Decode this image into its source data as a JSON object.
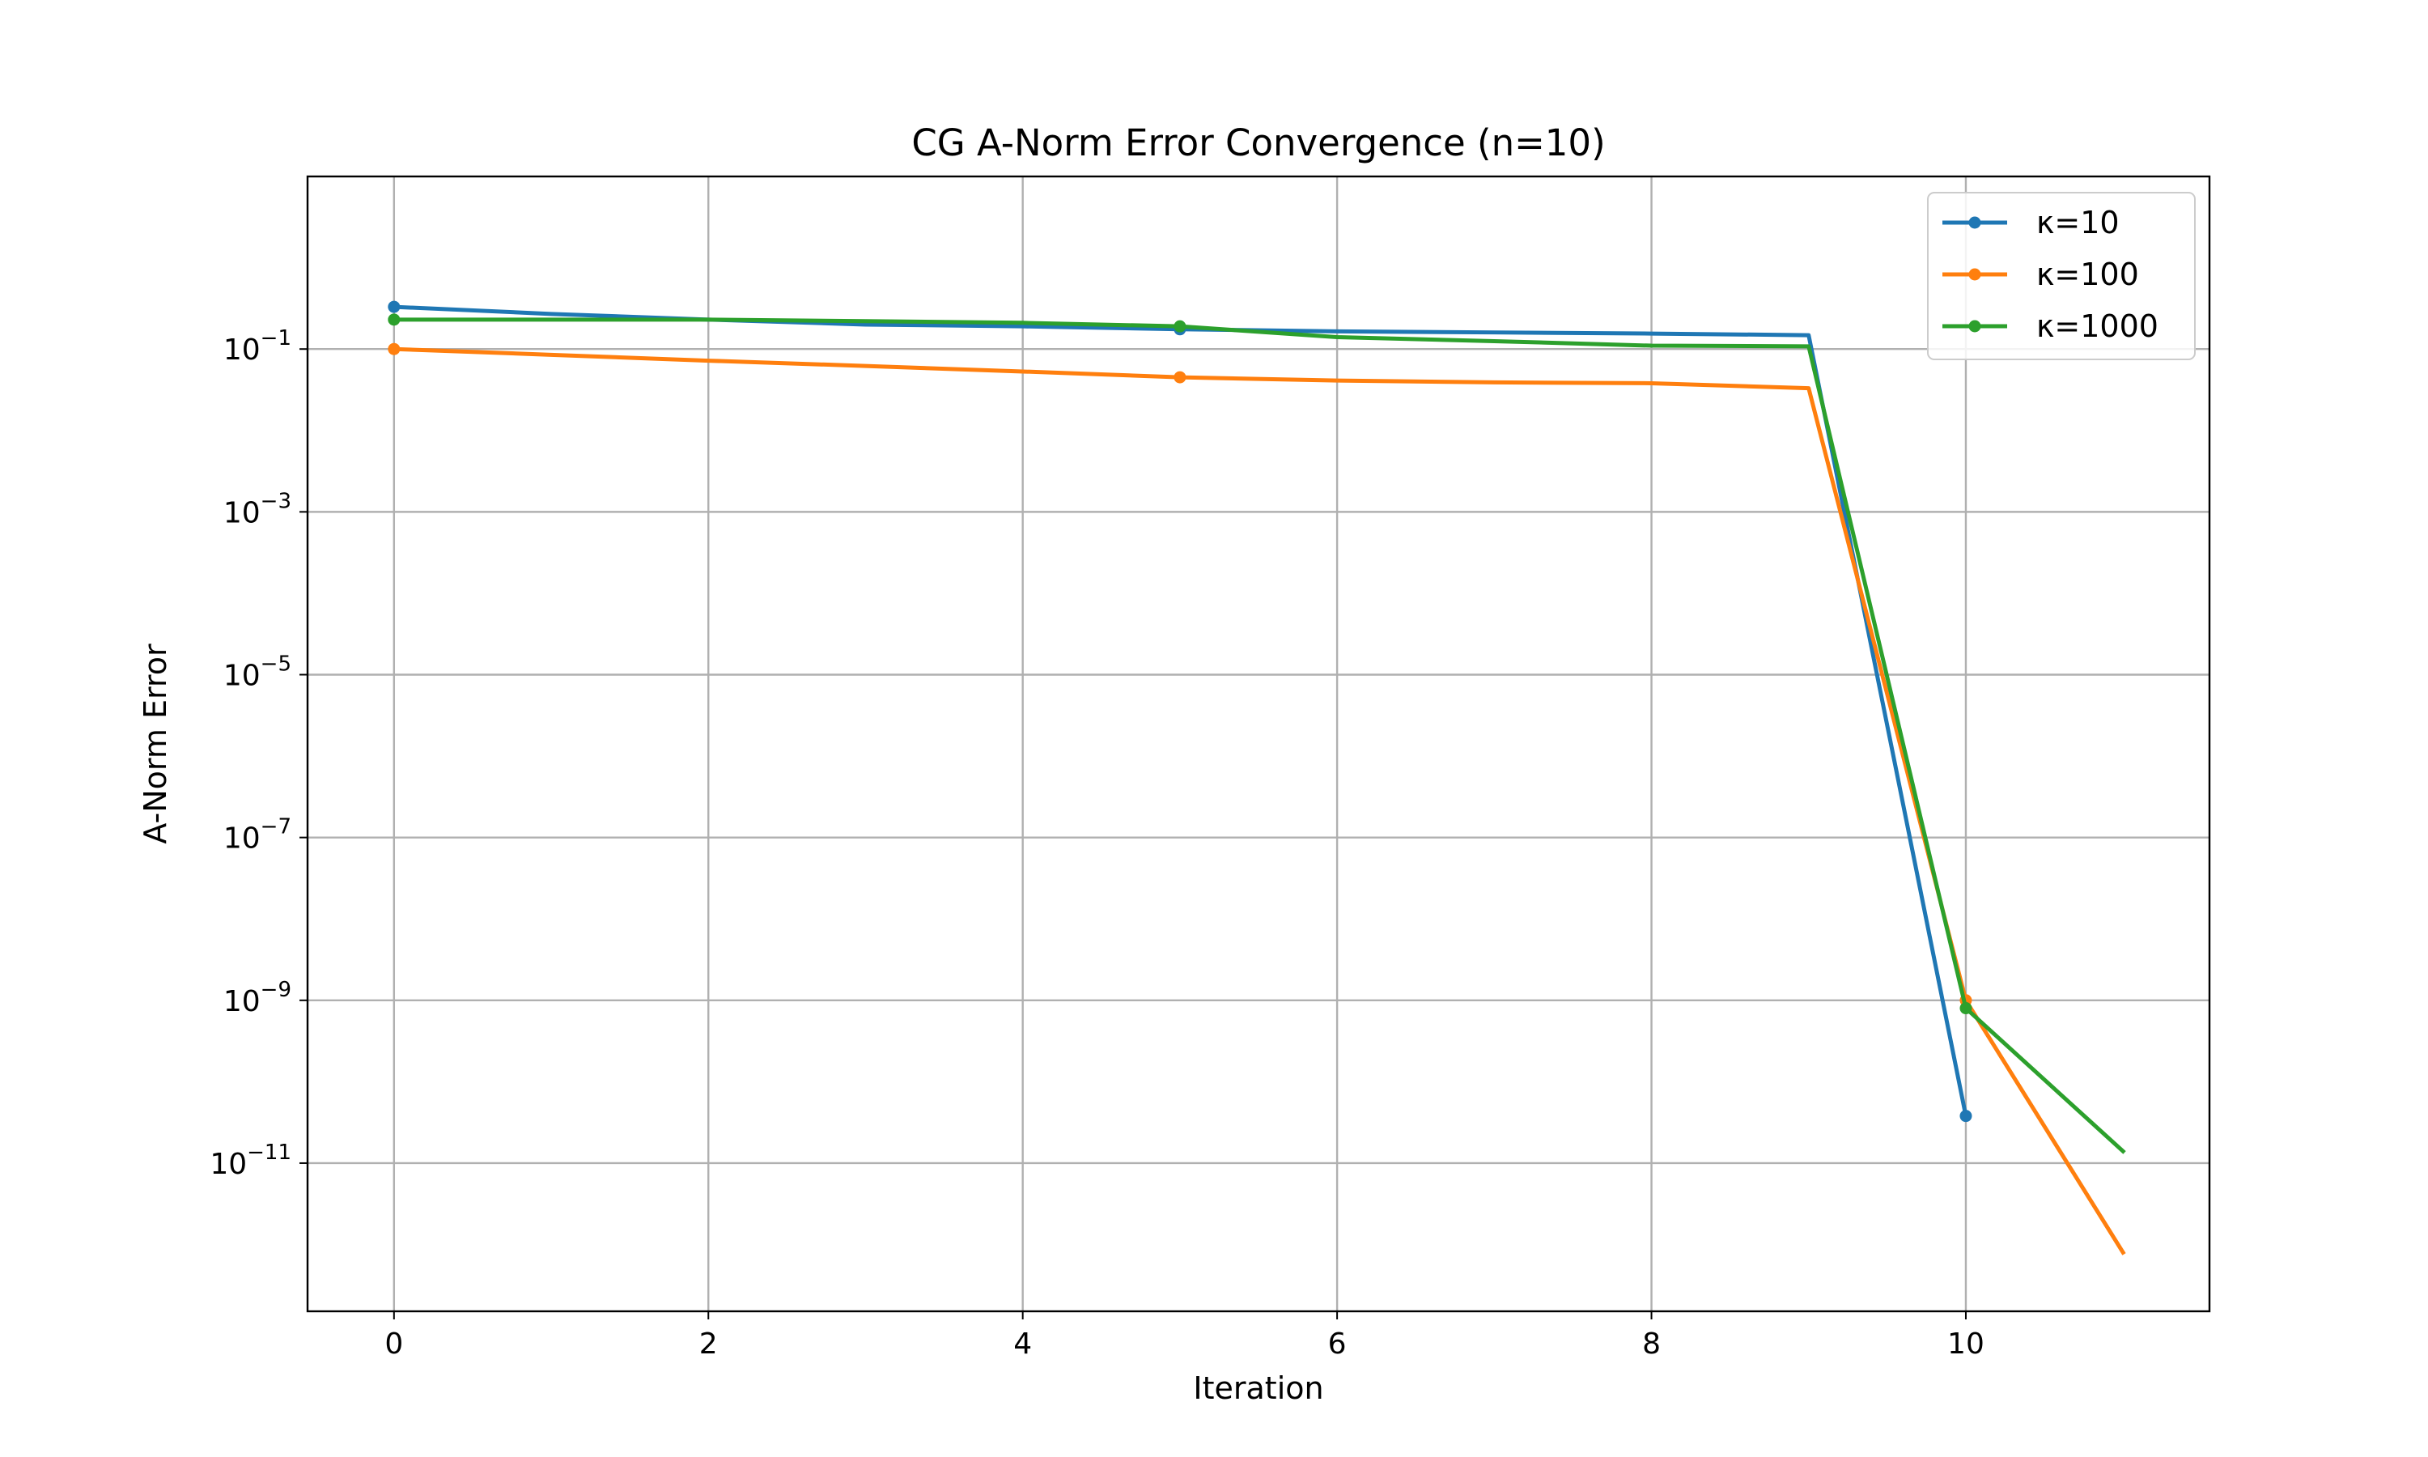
{
  "chart_data": {
    "type": "line",
    "title": "CG A-Norm Error Convergence (n=10)",
    "xlabel": "Iteration",
    "ylabel": "A-Norm Error",
    "xlim": [
      -0.55,
      11.55
    ],
    "ylim_log10": [
      -12.82,
      1.12
    ],
    "yscale": "log",
    "grid": true,
    "legend_position": "top-right",
    "x_ticks": [
      0,
      2,
      4,
      6,
      8,
      10
    ],
    "x_tick_labels": [
      "0",
      "2",
      "4",
      "6",
      "8",
      "10"
    ],
    "y_ticks_exp": [
      -1,
      -3,
      -5,
      -7,
      -9,
      -11
    ],
    "y_tick_labels": [
      {
        "base": "10",
        "exp": "−1"
      },
      {
        "base": "10",
        "exp": "−3"
      },
      {
        "base": "10",
        "exp": "−5"
      },
      {
        "base": "10",
        "exp": "−7"
      },
      {
        "base": "10",
        "exp": "−9"
      },
      {
        "base": "10",
        "exp": "−11"
      }
    ],
    "series": [
      {
        "name": "κ=10",
        "color": "#1f77b4",
        "markevery": [
          0,
          5,
          10
        ],
        "x": [
          0,
          1,
          2,
          3,
          4,
          5,
          6,
          7,
          8,
          9,
          10
        ],
        "y": [
          0.33,
          0.27,
          0.23,
          0.2,
          0.19,
          0.175,
          0.165,
          0.16,
          0.155,
          0.148,
          3.8e-11
        ]
      },
      {
        "name": "κ=100",
        "color": "#ff7f0e",
        "markevery": [
          0,
          5,
          10
        ],
        "x": [
          0,
          1,
          2,
          3,
          4,
          5,
          6,
          7,
          8,
          9,
          10,
          11
        ],
        "y": [
          0.1,
          0.085,
          0.072,
          0.062,
          0.053,
          0.045,
          0.041,
          0.039,
          0.038,
          0.033,
          1e-09,
          8e-13
        ]
      },
      {
        "name": "κ=1000",
        "color": "#2ca02c",
        "markevery": [
          0,
          5,
          10
        ],
        "x": [
          0,
          1,
          2,
          3,
          4,
          5,
          6,
          7,
          8,
          9,
          10,
          11
        ],
        "y": [
          0.23,
          0.23,
          0.23,
          0.22,
          0.21,
          0.19,
          0.14,
          0.125,
          0.11,
          0.108,
          8e-10,
          1.4e-11
        ]
      }
    ]
  }
}
